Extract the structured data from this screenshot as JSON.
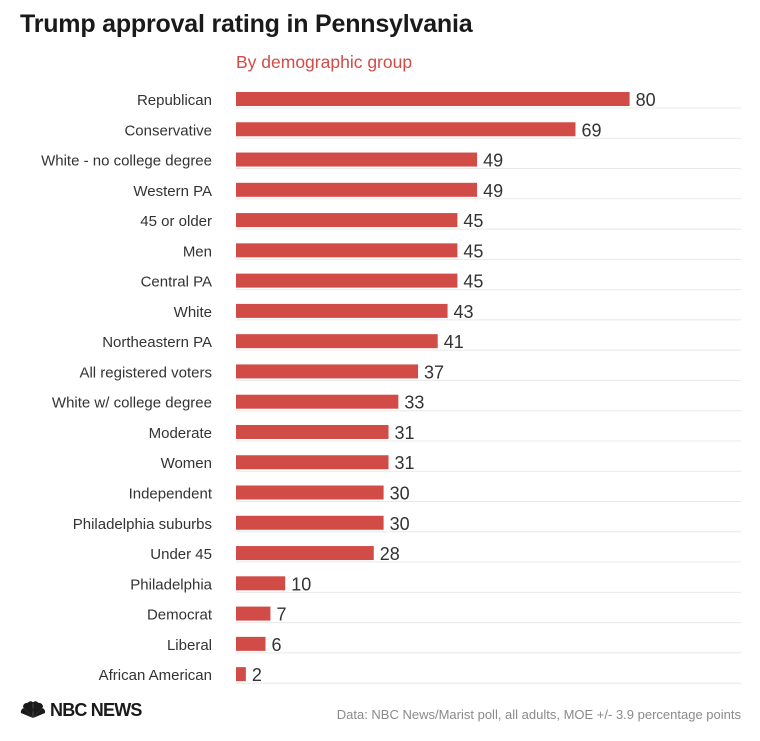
{
  "title": "Trump approval rating in Pennsylvania",
  "subtitle": "By demographic group",
  "source": "Data: NBC News/Marist poll, all adults, MOE +/- 3.9 percentage points",
  "logo": {
    "icon": "peacock-icon",
    "text": "NBC NEWS"
  },
  "colors": {
    "bar": "#d14b47",
    "text": "#333333",
    "grid": "#e8e8e8",
    "subtitle": "#d14b47"
  },
  "chart_data": {
    "type": "bar",
    "orientation": "horizontal",
    "categories": [
      "Republican",
      "Conservative",
      "White - no college degree",
      "Western PA",
      "45 or older",
      "Men",
      "Central PA",
      "White",
      "Northeastern PA",
      "All registered voters",
      "White w/ college degree",
      "Moderate",
      "Women",
      "Independent",
      "Philadelphia suburbs",
      "Under 45",
      "Philadelphia",
      "Democrat",
      "Liberal",
      "African American"
    ],
    "values": [
      80,
      69,
      49,
      49,
      45,
      45,
      45,
      43,
      41,
      37,
      33,
      31,
      31,
      30,
      30,
      28,
      10,
      7,
      6,
      2
    ],
    "title": "Trump approval rating in Pennsylvania",
    "subtitle": "By demographic group",
    "xlim": [
      0,
      100
    ],
    "grid": true,
    "legend": "none",
    "data_labels": true
  }
}
